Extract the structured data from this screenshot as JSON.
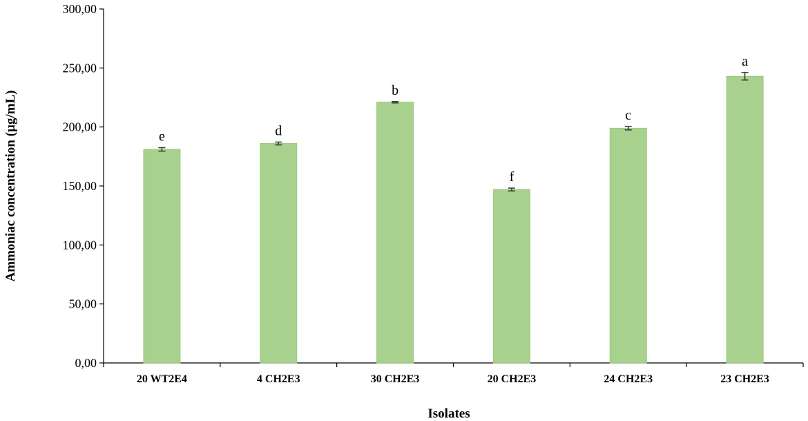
{
  "chart_data": {
    "type": "bar",
    "xlabel": "Isolates",
    "ylabel": "Ammoniac concentration (µg/mL)",
    "ylim": [
      0,
      300
    ],
    "yticks": [
      0,
      50,
      100,
      150,
      200,
      250,
      300
    ],
    "ytick_labels": [
      "0,00",
      "50,00",
      "100,00",
      "150,00",
      "200,00",
      "250,00",
      "300,00"
    ],
    "categories": [
      "20 WT2E4",
      "4 CH2E3",
      "30 CH2E3",
      "20 CH2E3",
      "24 CH2E3",
      "23 CH2E3"
    ],
    "values": [
      181,
      186,
      221,
      147,
      199,
      243
    ],
    "errors": [
      1.5,
      1.2,
      0.6,
      1.2,
      1.5,
      3.2
    ],
    "significance": [
      "e",
      "d",
      "b",
      "f",
      "c",
      "a"
    ],
    "grid": false,
    "legend": "none",
    "bar_color": "#a9d18e",
    "bar_edge_color": "#9bc77f",
    "error_bar_color": "#404040"
  }
}
